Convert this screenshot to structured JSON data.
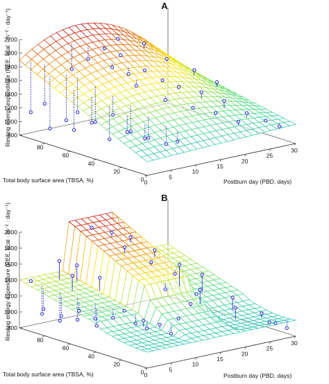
{
  "figure": {
    "colors": {
      "mesh_low": "#00a9e6",
      "mesh_mid": "#ffe600",
      "mesh_high": "#c40000",
      "marker": "#1b1bd6",
      "stem": "#1b1bd6"
    }
  },
  "chart_data": [
    {
      "type": "surface3d",
      "panel": "A",
      "zlabel": "Resting energy expenditure (REE, kcal · m⁻² · day⁻¹)",
      "xlabel": "Postburn day (PBD, days)",
      "ylabel": "Total body surface area (TBSA, %)",
      "xticks": [
        "0",
        "5",
        "10",
        "15",
        "20",
        "25",
        "30"
      ],
      "yticks": [
        "0",
        "20",
        "40",
        "60",
        "80"
      ],
      "zticks": [
        "800",
        "1000",
        "1200",
        "1400",
        "1600",
        "1800",
        "2000",
        "2200"
      ],
      "xlim": [
        0,
        30
      ],
      "ylim": [
        0,
        100
      ],
      "zlim": [
        800,
        2200
      ],
      "surface": "smooth quadratic in PBD and TBSA; min ≈1000 at TBSA 0, max ≈2200 at TBSA 100 and PBD ≈12",
      "points": [
        {
          "pbd": 1,
          "tbsa": 95,
          "ree": 1150
        },
        {
          "pbd": 2,
          "tbsa": 88,
          "ree": 1300
        },
        {
          "pbd": 1,
          "tbsa": 80,
          "ree": 1000
        },
        {
          "pbd": 3,
          "tbsa": 75,
          "ree": 1120
        },
        {
          "pbd": 4,
          "tbsa": 70,
          "ree": 1250
        },
        {
          "pbd": 2,
          "tbsa": 65,
          "ree": 1050
        },
        {
          "pbd": 5,
          "tbsa": 60,
          "ree": 1150
        },
        {
          "pbd": 3,
          "tbsa": 55,
          "ree": 1200
        },
        {
          "pbd": 6,
          "tbsa": 50,
          "ree": 1300
        },
        {
          "pbd": 4,
          "tbsa": 45,
          "ree": 1000
        },
        {
          "pbd": 7,
          "tbsa": 40,
          "ree": 1100
        },
        {
          "pbd": 5,
          "tbsa": 35,
          "ree": 1150
        },
        {
          "pbd": 8,
          "tbsa": 30,
          "ree": 1050
        },
        {
          "pbd": 6,
          "tbsa": 25,
          "ree": 1100
        },
        {
          "pbd": 9,
          "tbsa": 20,
          "ree": 1000
        },
        {
          "pbd": 10,
          "tbsa": 15,
          "ree": 1050
        },
        {
          "pbd": 8,
          "tbsa": 90,
          "ree": 1700
        },
        {
          "pbd": 10,
          "tbsa": 85,
          "ree": 1850
        },
        {
          "pbd": 12,
          "tbsa": 80,
          "ree": 2000
        },
        {
          "pbd": 14,
          "tbsa": 75,
          "ree": 1900
        },
        {
          "pbd": 11,
          "tbsa": 70,
          "ree": 1800
        },
        {
          "pbd": 13,
          "tbsa": 65,
          "ree": 1700
        },
        {
          "pbd": 15,
          "tbsa": 60,
          "ree": 1750
        },
        {
          "pbd": 12,
          "tbsa": 55,
          "ree": 1600
        },
        {
          "pbd": 16,
          "tbsa": 50,
          "ree": 1650
        },
        {
          "pbd": 18,
          "tbsa": 45,
          "ree": 1550
        },
        {
          "pbd": 14,
          "tbsa": 40,
          "ree": 1450
        },
        {
          "pbd": 20,
          "tbsa": 35,
          "ree": 1500
        },
        {
          "pbd": 17,
          "tbsa": 30,
          "ree": 1350
        },
        {
          "pbd": 22,
          "tbsa": 25,
          "ree": 1400
        },
        {
          "pbd": 19,
          "tbsa": 20,
          "ree": 1300
        },
        {
          "pbd": 24,
          "tbsa": 15,
          "ree": 1250
        },
        {
          "pbd": 21,
          "tbsa": 10,
          "ree": 1200
        },
        {
          "pbd": 26,
          "tbsa": 8,
          "ree": 1150
        },
        {
          "pbd": 28,
          "tbsa": 5,
          "ree": 1050
        },
        {
          "pbd": 16,
          "tbsa": 85,
          "ree": 2050
        },
        {
          "pbd": 20,
          "tbsa": 80,
          "ree": 1950
        },
        {
          "pbd": 22,
          "tbsa": 70,
          "ree": 1750
        },
        {
          "pbd": 25,
          "tbsa": 60,
          "ree": 1600
        },
        {
          "pbd": 27,
          "tbsa": 50,
          "ree": 1450
        }
      ]
    },
    {
      "type": "surface3d",
      "panel": "B",
      "zlabel": "Resting energy expenditure (REE, kcal · m⁻² · day⁻¹)",
      "xlabel": "Postburn day (PBD, days)",
      "ylabel": "Total body surface area (TBSA, %)",
      "xticks": [
        "0",
        "5",
        "10",
        "15",
        "20",
        "25",
        "30"
      ],
      "yticks": [
        "0",
        "20",
        "40",
        "60",
        "80"
      ],
      "zticks": [
        "800",
        "1000",
        "1200",
        "1400",
        "1600",
        "1800",
        "2000"
      ],
      "xlim": [
        0,
        30
      ],
      "ylim": [
        0,
        100
      ],
      "zlim": [
        800,
        2000
      ],
      "surface": "piecewise model with breakpoints near PBD 10 and PBD 20 and near TBSA 40; max ≈2000 at high TBSA, mid PBD",
      "points": [
        {
          "pbd": 1,
          "tbsa": 95,
          "ree": 1400
        },
        {
          "pbd": 2,
          "tbsa": 90,
          "ree": 1000
        },
        {
          "pbd": 1,
          "tbsa": 85,
          "ree": 1100
        },
        {
          "pbd": 3,
          "tbsa": 80,
          "ree": 950
        },
        {
          "pbd": 2,
          "tbsa": 75,
          "ree": 1050
        },
        {
          "pbd": 4,
          "tbsa": 70,
          "ree": 1000
        },
        {
          "pbd": 3,
          "tbsa": 65,
          "ree": 1150
        },
        {
          "pbd": 5,
          "tbsa": 60,
          "ree": 1050
        },
        {
          "pbd": 4,
          "tbsa": 55,
          "ree": 1000
        },
        {
          "pbd": 6,
          "tbsa": 50,
          "ree": 1100
        },
        {
          "pbd": 7,
          "tbsa": 45,
          "ree": 1200
        },
        {
          "pbd": 8,
          "tbsa": 40,
          "ree": 1050
        },
        {
          "pbd": 9,
          "tbsa": 35,
          "ree": 1000
        },
        {
          "pbd": 7,
          "tbsa": 30,
          "ree": 1150
        },
        {
          "pbd": 9,
          "tbsa": 25,
          "ree": 1100
        },
        {
          "pbd": 10,
          "tbsa": 20,
          "ree": 1000
        },
        {
          "pbd": 6,
          "tbsa": 92,
          "ree": 1600
        },
        {
          "pbd": 8,
          "tbsa": 86,
          "ree": 1550
        },
        {
          "pbd": 5,
          "tbsa": 78,
          "ree": 1500
        },
        {
          "pbd": 9,
          "tbsa": 72,
          "ree": 1450
        },
        {
          "pbd": 12,
          "tbsa": 90,
          "ree": 1950
        },
        {
          "pbd": 14,
          "tbsa": 82,
          "ree": 1900
        },
        {
          "pbd": 16,
          "tbsa": 75,
          "ree": 1850
        },
        {
          "pbd": 13,
          "tbsa": 68,
          "ree": 1800
        },
        {
          "pbd": 17,
          "tbsa": 60,
          "ree": 1750
        },
        {
          "pbd": 15,
          "tbsa": 55,
          "ree": 1650
        },
        {
          "pbd": 18,
          "tbsa": 48,
          "ree": 1500
        },
        {
          "pbd": 14,
          "tbsa": 40,
          "ree": 1400
        },
        {
          "pbd": 19,
          "tbsa": 35,
          "ree": 1300
        },
        {
          "pbd": 16,
          "tbsa": 28,
          "ree": 1250
        },
        {
          "pbd": 12,
          "tbsa": 22,
          "ree": 1150
        },
        {
          "pbd": 22,
          "tbsa": 60,
          "ree": 1500
        },
        {
          "pbd": 24,
          "tbsa": 50,
          "ree": 1400
        },
        {
          "pbd": 21,
          "tbsa": 40,
          "ree": 1300
        },
        {
          "pbd": 25,
          "tbsa": 30,
          "ree": 1200
        },
        {
          "pbd": 23,
          "tbsa": 20,
          "ree": 1150
        },
        {
          "pbd": 27,
          "tbsa": 15,
          "ree": 1050
        },
        {
          "pbd": 28,
          "tbsa": 8,
          "ree": 950
        },
        {
          "pbd": 26,
          "tbsa": 5,
          "ree": 1000
        },
        {
          "pbd": 29,
          "tbsa": 3,
          "ree": 900
        }
      ]
    }
  ]
}
